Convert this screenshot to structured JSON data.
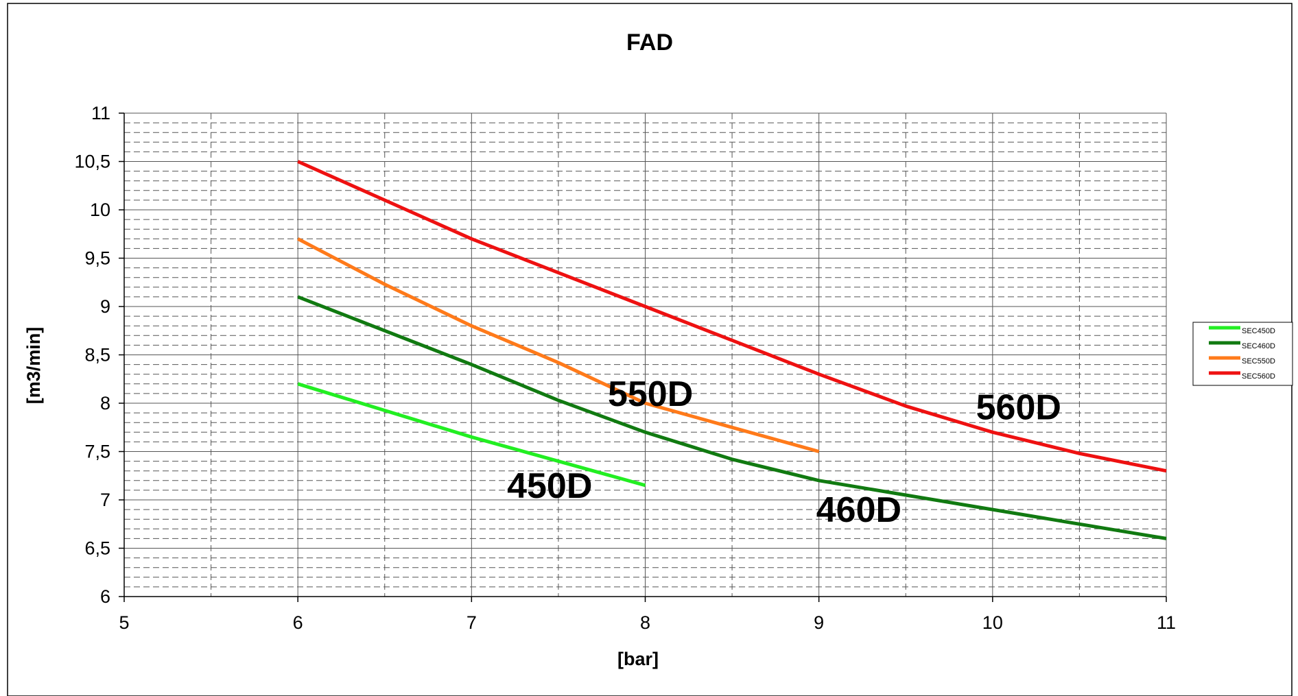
{
  "chart_data": {
    "type": "line",
    "title": "FAD",
    "xlabel": "[bar]",
    "ylabel": "[m3/min]",
    "xlim": [
      5,
      11
    ],
    "ylim": [
      6,
      11
    ],
    "x_ticks": [
      "5",
      "6",
      "7",
      "8",
      "9",
      "10",
      "11"
    ],
    "y_ticks": [
      "6",
      "6,5",
      "7",
      "7,5",
      "8",
      "8,5",
      "9",
      "9,5",
      "10",
      "10,5",
      "11"
    ],
    "grid": true,
    "legend_position": "right",
    "series": [
      {
        "name": "SEC450D",
        "color": "#22ee22",
        "points": [
          [
            6,
            8.2
          ],
          [
            7,
            7.65
          ],
          [
            8,
            7.15
          ]
        ]
      },
      {
        "name": "SEC460D",
        "color": "#117a11",
        "points": [
          [
            6,
            9.1
          ],
          [
            7,
            8.4
          ],
          [
            7.5,
            8.03
          ],
          [
            8,
            7.7
          ],
          [
            8.5,
            7.42
          ],
          [
            9,
            7.2
          ],
          [
            9.5,
            7.05
          ],
          [
            10,
            6.9
          ],
          [
            10.5,
            6.75
          ],
          [
            11,
            6.6
          ]
        ]
      },
      {
        "name": "SEC550D",
        "color": "#ff7a1a",
        "points": [
          [
            6,
            9.7
          ],
          [
            6.5,
            9.23
          ],
          [
            7,
            8.8
          ],
          [
            7.5,
            8.42
          ],
          [
            8,
            8.0
          ],
          [
            8.5,
            7.75
          ],
          [
            9,
            7.5
          ]
        ]
      },
      {
        "name": "SEC560D",
        "color": "#ee1111",
        "points": [
          [
            6,
            10.5
          ],
          [
            6.5,
            10.1
          ],
          [
            7,
            9.7
          ],
          [
            7.5,
            9.35
          ],
          [
            8,
            9.0
          ],
          [
            8.5,
            8.65
          ],
          [
            9,
            8.3
          ],
          [
            9.5,
            7.97
          ],
          [
            10,
            7.7
          ],
          [
            10.5,
            7.48
          ],
          [
            11,
            7.3
          ]
        ]
      }
    ],
    "annotations": [
      {
        "text": "450D",
        "x": 7.45,
        "y": 7.15
      },
      {
        "text": "460D",
        "x": 9.23,
        "y": 6.9
      },
      {
        "text": "550D",
        "x": 8.03,
        "y": 8.1
      },
      {
        "text": "560D",
        "x": 10.15,
        "y": 7.96
      }
    ]
  }
}
